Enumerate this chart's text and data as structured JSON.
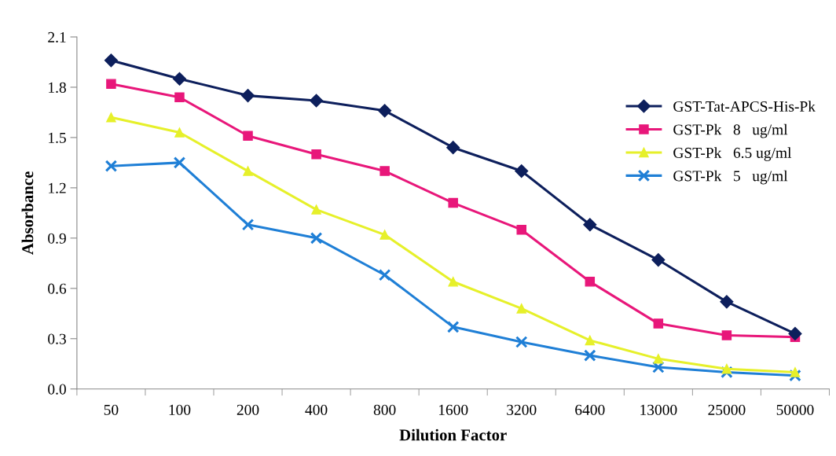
{
  "chart_data": {
    "type": "line",
    "xlabel": "Dilution Factor",
    "ylabel": "Absorbance",
    "categories": [
      "50",
      "100",
      "200",
      "400",
      "800",
      "1600",
      "3200",
      "6400",
      "13000",
      "25000",
      "50000"
    ],
    "ylim": [
      0,
      2.1
    ],
    "yticks": [
      {
        "value": 0,
        "label": "0.0"
      },
      0.3,
      0.6,
      0.9,
      1.2,
      1.5,
      1.8,
      2.1
    ],
    "grid": false,
    "legend": "right",
    "series": [
      {
        "name": "GST-Tat-APCS-His-Pk",
        "color": "#0d1f5c",
        "marker": "diamond",
        "values": [
          1.96,
          1.85,
          1.75,
          1.72,
          1.66,
          1.44,
          1.3,
          0.98,
          0.77,
          0.52,
          0.33
        ]
      },
      {
        "name": "GST-Pk   8   ug/ml",
        "color": "#e8177a",
        "marker": "square",
        "values": [
          1.82,
          1.74,
          1.51,
          1.4,
          1.3,
          1.11,
          0.95,
          0.64,
          0.39,
          0.32,
          0.31
        ]
      },
      {
        "name": "GST-Pk   6.5 ug/ml",
        "color": "#e6f02a",
        "marker": "triangle",
        "values": [
          1.62,
          1.53,
          1.3,
          1.07,
          0.92,
          0.64,
          0.48,
          0.29,
          0.18,
          0.12,
          0.1
        ]
      },
      {
        "name": "GST-Pk   5   ug/ml",
        "color": "#1f7fd6",
        "marker": "cross",
        "values": [
          1.33,
          1.35,
          0.98,
          0.9,
          0.68,
          0.37,
          0.28,
          0.2,
          0.13,
          0.1,
          0.08
        ]
      }
    ]
  }
}
